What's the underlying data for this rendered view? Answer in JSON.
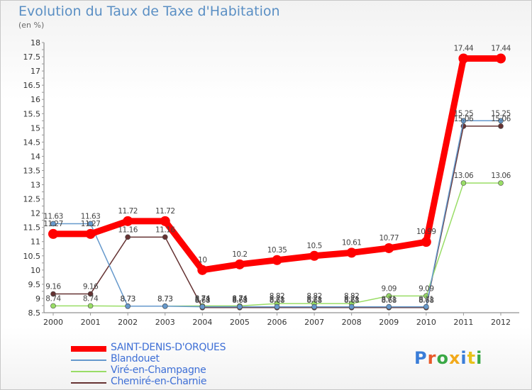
{
  "title": "Evolution du Taux de Taxe d'Habitation",
  "subtitle": "(en %)",
  "chart_data": {
    "type": "line",
    "title": "Evolution du Taux de Taxe d'Habitation",
    "ylabel": "(en %)",
    "xlabel": "",
    "categories": [
      "2000",
      "2001",
      "2002",
      "2003",
      "2004",
      "2005",
      "2006",
      "2007",
      "2008",
      "2009",
      "2010",
      "2011",
      "2012"
    ],
    "ylim": [
      8.5,
      18
    ],
    "yticks": [
      "8.5",
      "9",
      "9.5",
      "10",
      "10.5",
      "11",
      "11.5",
      "12",
      "12.5",
      "13",
      "13.5",
      "14",
      "14.5",
      "15",
      "15.5",
      "16",
      "16.5",
      "17",
      "17.5",
      "18"
    ],
    "grid": false,
    "series": [
      {
        "name": "SAINT-DENIS-D'ORQUES",
        "color": "#ff0000",
        "values": [
          11.27,
          11.27,
          11.72,
          11.72,
          10,
          10.2,
          10.35,
          10.5,
          10.61,
          10.77,
          10.99,
          17.44,
          17.44
        ],
        "labels": [
          "11.27",
          "11.27",
          "11.72",
          "11.72",
          "10",
          "10.2",
          "10.35",
          "10.5",
          "10.61",
          "10.77",
          "10.99",
          "17.44",
          "17.44"
        ]
      },
      {
        "name": "Blandouet",
        "color": "#6699cc",
        "values": [
          11.63,
          11.63,
          8.73,
          8.73,
          8.71,
          8.71,
          8.71,
          8.71,
          8.71,
          8.71,
          8.71,
          15.25,
          15.25
        ],
        "labels": [
          "11.63",
          "11.63",
          "8.73",
          "8.73",
          "8.71",
          "8.71",
          "8.71",
          "8.71",
          "8.71",
          "8.71",
          "8.71",
          "15.25",
          "15.25"
        ]
      },
      {
        "name": "Viré-en-Champagne",
        "color": "#99dd66",
        "values": [
          8.74,
          8.74,
          8.73,
          8.73,
          8.74,
          8.74,
          8.82,
          8.82,
          8.82,
          9.09,
          9.09,
          13.06,
          13.06
        ],
        "labels": [
          "8.74",
          "8.74",
          "8.73",
          "8.73",
          "8.74",
          "8.74",
          "8.82",
          "8.82",
          "8.82",
          "9.09",
          "9.09",
          "13.06",
          "13.06"
        ]
      },
      {
        "name": "Chemiré-en-Charnie",
        "color": "#663333",
        "values": [
          9.16,
          9.16,
          11.16,
          11.16,
          8.68,
          8.68,
          8.68,
          8.68,
          8.68,
          8.68,
          8.68,
          15.06,
          15.06
        ],
        "labels": [
          "9.16",
          "9.16",
          "11.16",
          "11.16",
          "8.68",
          "8.68",
          "8.68",
          "8.68",
          "8.68",
          "8.68",
          "8.68",
          "15.06",
          "15.06"
        ]
      }
    ]
  },
  "legend": {
    "items": [
      {
        "label": "SAINT-DENIS-D'ORQUES",
        "color": "#ff0000"
      },
      {
        "label": "Blandouet",
        "color": "#6699cc"
      },
      {
        "label": "Viré-en-Champagne",
        "color": "#99dd66"
      },
      {
        "label": "Chemiré-en-Charnie",
        "color": "#663333"
      }
    ]
  },
  "logo": {
    "letters": [
      "P",
      "r",
      "o",
      "x",
      "i",
      "t",
      "i"
    ],
    "colors": [
      "#3a7dd8",
      "#e85a2a",
      "#39a845",
      "#f2a91a",
      "#3a7dd8",
      "#e8c21a",
      "#39a845"
    ]
  }
}
